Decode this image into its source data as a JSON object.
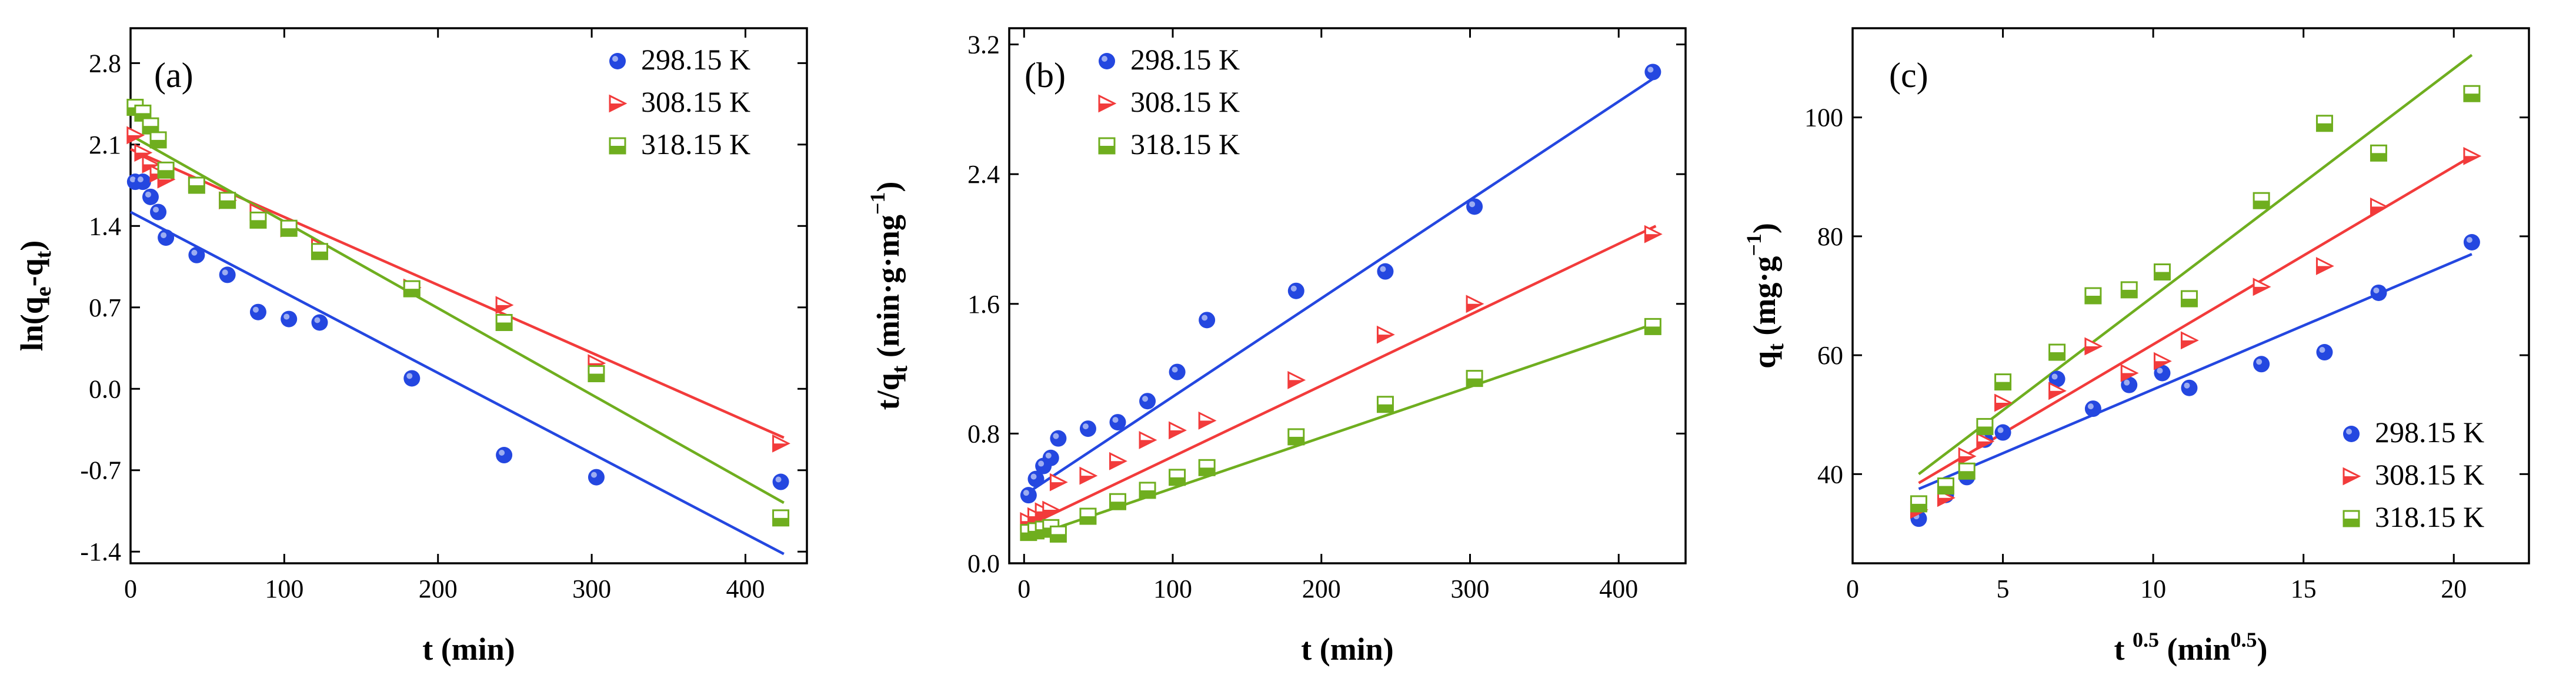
{
  "colors": {
    "blue": "#2447e0",
    "red": "#f23b3b",
    "green": "#6fae1f",
    "axis": "#000000"
  },
  "chart_data": [
    {
      "id": "a",
      "type": "scatter",
      "panel_label": "(a)",
      "xlabel": "t (min)",
      "ylabel": {
        "prefix": "ln(q",
        "sub1": "e",
        "mid": "-q",
        "sub2": "t",
        "suffix": ")"
      },
      "xlim": [
        0,
        440
      ],
      "ylim": [
        -1.5,
        3.1
      ],
      "xticks": [
        0,
        100,
        200,
        300,
        400
      ],
      "xtick_labels": [
        "0",
        "100",
        "200",
        "300",
        "400"
      ],
      "yticks": [
        -1.4,
        -0.7,
        0.0,
        0.7,
        1.4,
        2.1,
        2.8
      ],
      "ytick_labels": [
        "-1.4",
        "-0.7",
        "0.0",
        "0.7",
        "1.4",
        "2.1",
        "2.8"
      ],
      "legend_position": "top-right",
      "series": [
        {
          "name": "298.15 K",
          "color_key": "blue",
          "marker": "circle",
          "x": [
            3,
            8,
            13,
            18,
            23,
            43,
            63,
            83,
            103,
            123,
            183,
            243,
            303,
            423
          ],
          "y": [
            1.78,
            1.78,
            1.65,
            1.52,
            1.3,
            1.15,
            0.98,
            0.66,
            0.6,
            0.57,
            0.09,
            -0.57,
            -0.76,
            -0.8
          ],
          "fit": [
            [
              0,
              1.52
            ],
            [
              425,
              -1.42
            ]
          ]
        },
        {
          "name": "308.15 K",
          "color_key": "red",
          "marker": "triangle-right",
          "x": [
            3,
            8,
            13,
            18,
            23,
            43,
            63,
            83,
            103,
            123,
            183,
            243,
            303,
            423
          ],
          "y": [
            2.18,
            2.03,
            1.93,
            1.85,
            1.8,
            1.77,
            1.62,
            1.52,
            1.38,
            1.22,
            0.87,
            0.72,
            0.22,
            -0.47
          ],
          "fit": [
            [
              0,
              2.06
            ],
            [
              425,
              -0.42
            ]
          ]
        },
        {
          "name": "318.15 K",
          "color_key": "green",
          "marker": "square",
          "x": [
            3,
            8,
            13,
            18,
            23,
            43,
            63,
            83,
            103,
            123,
            183,
            243,
            303,
            423
          ],
          "y": [
            2.42,
            2.37,
            2.26,
            2.14,
            1.88,
            1.75,
            1.62,
            1.45,
            1.38,
            1.18,
            0.86,
            0.57,
            0.13,
            -1.11
          ],
          "fit": [
            [
              0,
              2.18
            ],
            [
              425,
              -0.98
            ]
          ]
        }
      ]
    },
    {
      "id": "b",
      "type": "scatter",
      "panel_label": "(b)",
      "xlabel": "t (min)",
      "ylabel": {
        "prefix": "t/q",
        "sub1": "t",
        "mid": " (min·g·mg",
        "sup": "−1",
        "suffix": ")"
      },
      "xlim": [
        -10,
        445
      ],
      "ylim": [
        0,
        3.3
      ],
      "xticks": [
        0,
        100,
        200,
        300,
        400
      ],
      "xtick_labels": [
        "0",
        "100",
        "200",
        "300",
        "400"
      ],
      "yticks": [
        0.0,
        0.8,
        1.6,
        2.4,
        3.2
      ],
      "ytick_labels": [
        "0.0",
        "0.8",
        "1.6",
        "2.4",
        "3.2"
      ],
      "legend_position": "top-left",
      "series": [
        {
          "name": "298.15 K",
          "color_key": "blue",
          "marker": "circle",
          "x": [
            3,
            8,
            13,
            18,
            23,
            43,
            63,
            83,
            103,
            123,
            183,
            243,
            303,
            423
          ],
          "y": [
            0.42,
            0.52,
            0.6,
            0.65,
            0.77,
            0.83,
            0.87,
            1.0,
            1.18,
            1.5,
            1.68,
            1.8,
            2.2,
            3.03
          ],
          "fit": [
            [
              0,
              0.42
            ],
            [
              425,
              3.0
            ]
          ]
        },
        {
          "name": "308.15 K",
          "color_key": "red",
          "marker": "triangle-right",
          "x": [
            3,
            8,
            13,
            18,
            23,
            43,
            63,
            83,
            103,
            123,
            183,
            243,
            303,
            423
          ],
          "y": [
            0.26,
            0.29,
            0.32,
            0.33,
            0.5,
            0.54,
            0.63,
            0.76,
            0.82,
            0.88,
            1.13,
            1.41,
            1.6,
            2.03
          ],
          "fit": [
            [
              0,
              0.22
            ],
            [
              425,
              2.08
            ]
          ]
        },
        {
          "name": "318.15 K",
          "color_key": "green",
          "marker": "square",
          "x": [
            3,
            8,
            13,
            18,
            23,
            43,
            63,
            83,
            103,
            123,
            183,
            243,
            303,
            423
          ],
          "y": [
            0.19,
            0.2,
            0.21,
            0.22,
            0.18,
            0.29,
            0.38,
            0.45,
            0.53,
            0.59,
            0.78,
            0.98,
            1.14,
            1.46
          ],
          "fit": [
            [
              0,
              0.15
            ],
            [
              425,
              1.48
            ]
          ]
        }
      ]
    },
    {
      "id": "c",
      "type": "scatter",
      "panel_label": "(c)",
      "xlabel": {
        "prefix": "t ",
        "sup": "0.5",
        "mid": " (min",
        "sup2": "0.5",
        "suffix": ")"
      },
      "ylabel": {
        "prefix": "q",
        "sub1": "t",
        "mid": " (mg·g",
        "sup": "−1",
        "suffix": ")"
      },
      "xlim": [
        0,
        22.5
      ],
      "ylim": [
        25,
        115
      ],
      "xticks": [
        0,
        5,
        10,
        15,
        20
      ],
      "xtick_labels": [
        "0",
        "5",
        "10",
        "15",
        "20"
      ],
      "yticks": [
        40,
        60,
        80,
        100
      ],
      "ytick_labels": [
        "40",
        "60",
        "80",
        "100"
      ],
      "legend_position": "bottom-right",
      "series": [
        {
          "name": "298.15 K",
          "color_key": "blue",
          "marker": "circle",
          "x": [
            2.2,
            3.1,
            3.8,
            4.4,
            5.0,
            6.8,
            8.0,
            9.2,
            10.3,
            11.2,
            13.6,
            15.7,
            17.5,
            20.6
          ],
          "y": [
            32.5,
            36.5,
            39.5,
            45.8,
            47.0,
            56.0,
            51.0,
            55.0,
            57.0,
            54.5,
            58.5,
            60.5,
            70.5,
            79.0
          ],
          "fit": [
            [
              2.2,
              37.5
            ],
            [
              20.6,
              77.0
            ]
          ]
        },
        {
          "name": "308.15 K",
          "color_key": "red",
          "marker": "triangle-right",
          "x": [
            2.2,
            3.1,
            3.8,
            4.4,
            5.0,
            6.8,
            8.0,
            9.2,
            10.3,
            11.2,
            13.6,
            15.7,
            17.5,
            20.6
          ],
          "y": [
            34.0,
            36.0,
            43.0,
            45.5,
            52.0,
            54.0,
            61.5,
            57.0,
            59.0,
            62.5,
            71.5,
            75.0,
            85.0,
            93.5
          ],
          "fit": [
            [
              2.2,
              38.5
            ],
            [
              20.6,
              93.5
            ]
          ]
        },
        {
          "name": "318.15 K",
          "color_key": "green",
          "marker": "square",
          "x": [
            2.2,
            3.1,
            3.8,
            4.4,
            5.0,
            6.8,
            8.0,
            9.2,
            10.3,
            11.2,
            13.6,
            15.7,
            17.5,
            20.6
          ],
          "y": [
            35.0,
            38.0,
            40.5,
            48.0,
            55.5,
            60.5,
            70.0,
            71.0,
            74.0,
            69.5,
            86.0,
            99.0,
            94.0,
            104.0
          ],
          "fit": [
            [
              2.2,
              40.0
            ],
            [
              20.6,
              110.5
            ]
          ]
        }
      ]
    }
  ]
}
